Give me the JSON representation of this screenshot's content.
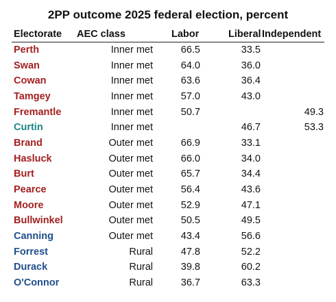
{
  "title": "2PP outcome 2025 federal election, percent",
  "table": {
    "header": [
      "Electorate",
      "AEC class",
      "Labor",
      "Liberal",
      "Independent"
    ],
    "rows": [
      [
        "Perth",
        "Inner met",
        "66.5",
        "33.5",
        null
      ],
      [
        "Swan",
        "Inner met",
        "64.0",
        "36.0",
        null
      ],
      [
        "Cowan",
        "Inner met",
        "63.6",
        "36.4",
        null
      ],
      [
        "Tamgey",
        "Inner met",
        "57.0",
        "43.0",
        null
      ],
      [
        "Fremantle",
        "Inner met",
        "50.7",
        null,
        "49.3"
      ],
      [
        "Curtin",
        "Inner met",
        null,
        "46.7",
        "53.3"
      ],
      [
        "Brand",
        "Outer met",
        "66.9",
        "33.1",
        null
      ],
      [
        "Hasluck",
        "Outer met",
        "66.0",
        "34.0",
        null
      ],
      [
        "Burt",
        "Outer met",
        "65.7",
        "34.4",
        null
      ],
      [
        "Pearce",
        "Outer met",
        "56.4",
        "43.6",
        null
      ],
      [
        "Moore",
        "Outer met",
        "52.9",
        "47.1",
        null
      ],
      [
        "Bullwinkel",
        "Outer met",
        "50.5",
        "49.5",
        null
      ],
      [
        "Canning",
        "Outer met",
        "43.4",
        "56.6",
        null
      ],
      [
        "Forrest",
        "Rural",
        "47.8",
        "52.2",
        null
      ],
      [
        "Durack",
        "Rural",
        "39.8",
        "60.2",
        null
      ],
      [
        "O'Connor",
        "Rural",
        "36.7",
        "63.3",
        null
      ]
    ],
    "row_colors": [
      "#a31f1f",
      "#a31f1f",
      "#a31f1f",
      "#a31f1f",
      "#a31f1f",
      "#1d8585",
      "#a31f1f",
      "#a31f1f",
      "#a31f1f",
      "#a31f1f",
      "#a31f1f",
      "#a31f1f",
      "#1f4e8c",
      "#1f4e8c",
      "#1f4e8c",
      "#1f4e8c"
    ]
  }
}
